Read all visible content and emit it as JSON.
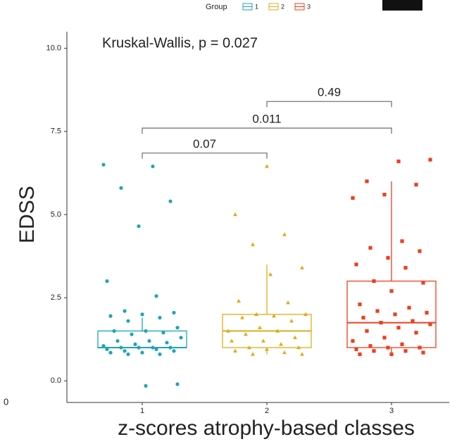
{
  "chart_data": {
    "type": "box",
    "annotation": "Kruskal-Wallis, p = 0.027",
    "xlabel": "z-scores atrophy-based classes",
    "ylabel": "EDSS",
    "legend_title": "Group",
    "left_fragment": "0",
    "categories": [
      "1",
      "2",
      "3"
    ],
    "ylim": [
      -0.65,
      10.5
    ],
    "yticks": [
      {
        "value": 0,
        "label": "0.0"
      },
      2.5,
      {
        "value": 5,
        "label": "5.0"
      },
      7.5,
      {
        "value": 10,
        "label": "10.0"
      }
    ],
    "series": [
      {
        "name": "1",
        "color": "#1ea5b5",
        "marker": "circle",
        "whisker_low": 1.0,
        "q1": 1.0,
        "median": 1.0,
        "q3": 1.5,
        "whisker_high": 1.9,
        "points": [
          6.5,
          6.45,
          5.8,
          5.4,
          4.65,
          3.0,
          2.55,
          2.1,
          2.05,
          2.0,
          1.95,
          1.9,
          1.8,
          1.6,
          1.5,
          1.5,
          1.45,
          1.4,
          1.3,
          1.2,
          1.2,
          1.15,
          1.1,
          1.05,
          1.0,
          1.0,
          1.0,
          1.0,
          0.95,
          0.95,
          0.9,
          0.9,
          0.85,
          0.85,
          0.8,
          0.8,
          -0.1,
          -0.15
        ]
      },
      {
        "name": "2",
        "color": "#dcae1d",
        "marker": "triangle",
        "whisker_low": 0.8,
        "q1": 1.0,
        "median": 1.5,
        "q3": 2.0,
        "whisker_high": 3.5,
        "points": [
          6.45,
          5.0,
          4.4,
          4.1,
          3.4,
          3.2,
          2.4,
          2.35,
          2.0,
          2.0,
          1.95,
          1.9,
          1.8,
          1.6,
          1.5,
          1.5,
          1.4,
          1.3,
          1.2,
          1.2,
          1.1,
          1.0,
          1.0,
          0.95,
          0.9,
          0.85,
          0.8,
          0.8
        ]
      },
      {
        "name": "3",
        "color": "#ee3f1f",
        "marker": "square",
        "whisker_low": 0.8,
        "q1": 1.0,
        "median": 1.75,
        "q3": 3.0,
        "whisker_high": 6.0,
        "points": [
          6.65,
          6.6,
          6.0,
          5.9,
          5.6,
          5.5,
          4.2,
          4.0,
          3.9,
          3.7,
          3.5,
          3.4,
          3.0,
          2.95,
          2.7,
          2.3,
          2.2,
          2.1,
          2.05,
          2.0,
          1.9,
          1.8,
          1.75,
          1.7,
          1.6,
          1.5,
          1.45,
          1.3,
          1.2,
          1.1,
          1.05,
          1.0,
          1.0,
          0.95,
          0.9,
          0.9,
          0.85,
          0.8,
          0.8
        ]
      }
    ],
    "comparisons": [
      {
        "groups": [
          "1",
          "2"
        ],
        "y": 6.85,
        "label": "0.07"
      },
      {
        "groups": [
          "1",
          "3"
        ],
        "y": 7.6,
        "label": "0.011"
      },
      {
        "groups": [
          "2",
          "3"
        ],
        "y": 8.4,
        "label": "0.49"
      }
    ]
  }
}
